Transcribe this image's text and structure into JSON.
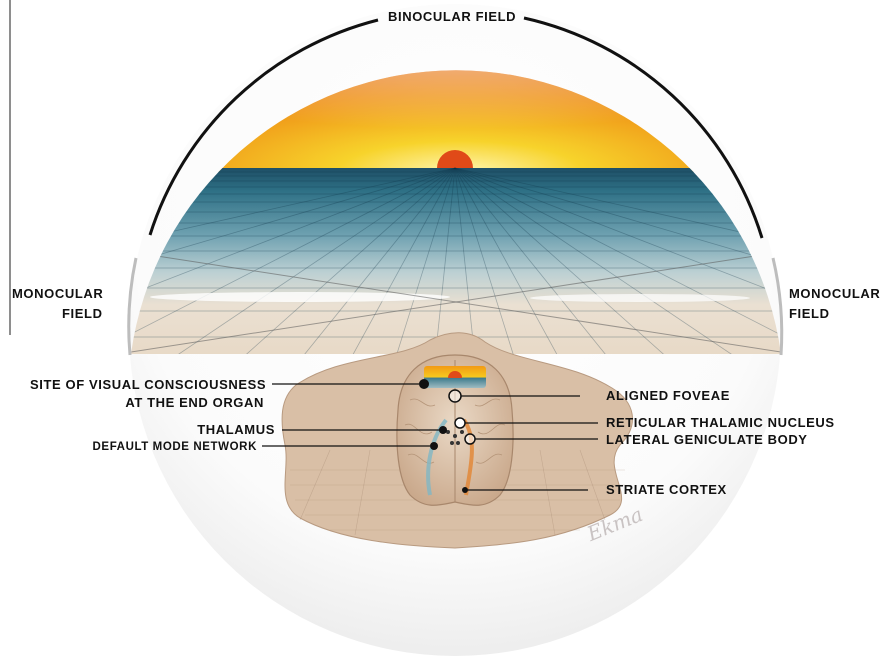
{
  "labels": {
    "binocular_field": "BINOCULAR FIELD",
    "monocular_left_line1": "MONOCULAR",
    "monocular_left_line2": "FIELD",
    "monocular_right_line1": "MONOCULAR",
    "monocular_right_line2": "FIELD",
    "site_line1": "SITE OF VISUAL CONSCIOUSNESS",
    "site_line2": "AT THE END ORGAN",
    "thalamus": "THALAMUS",
    "default_mode_network": "DEFAULT MODE NETWORK",
    "aligned_foveae": "ALIGNED FOVEAE",
    "reticular_thalamic_nucleus": "RETICULAR THALAMIC NUCLEUS",
    "lateral_geniculate_body": "LATERAL GENICULATE BODY",
    "striate_cortex": "STRIATE CORTEX"
  },
  "signature": "Ekma",
  "colors": {
    "sun": "#e0481a",
    "sky_top": "#d9410f",
    "sky_horizon": "#f6c51c",
    "ground_far": "#2f6d80",
    "ground_near": "#e9dccb",
    "brain_base": "#cfb8a2"
  }
}
